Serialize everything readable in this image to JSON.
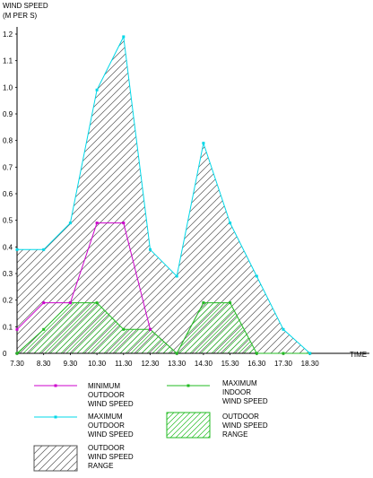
{
  "chart_data": {
    "type": "line",
    "ylabel_line1": "WIND SPEED",
    "ylabel_line2": "(M PER S)",
    "xlabel": "TIME",
    "ylim": [
      0,
      1.2
    ],
    "yticks": [
      "0",
      "0.1",
      "0.2",
      "0.3",
      "0.4",
      "0.5",
      "0.6",
      "0.7",
      "0.8",
      "0.9",
      "1.0",
      "1.1",
      "1.2"
    ],
    "categories": [
      "7.30",
      "8.30",
      "9.30",
      "10.30",
      "11.30",
      "12.30",
      "13.30",
      "14.30",
      "15.30",
      "16.30",
      "17.30",
      "18.30"
    ],
    "legend_placement": "bottom",
    "series": [
      {
        "key": "min_out",
        "color": "#cc00cc",
        "legend": [
          "MINIMUM",
          "OUTDOOR",
          "WIND SPEED"
        ],
        "x": [
          7.3,
          8.3,
          9.3,
          10.3,
          11.3,
          12.3
        ],
        "values": [
          0.09,
          0.19,
          0.19,
          0.49,
          0.49,
          0.09
        ]
      },
      {
        "key": "max_out",
        "color": "#00d8e8",
        "legend": [
          "MAXIMUM",
          "OUTDOOR",
          "WIND SPEED"
        ],
        "x": [
          7.3,
          8.3,
          9.3,
          10.3,
          11.3,
          12.3,
          13.3,
          14.3,
          15.3,
          16.3,
          17.3,
          18.3
        ],
        "values": [
          0.39,
          0.39,
          0.49,
          0.99,
          1.19,
          0.39,
          0.29,
          0.79,
          0.49,
          0.29,
          0.09,
          0.0
        ]
      },
      {
        "key": "max_in",
        "color": "#22bb22",
        "legend": [
          "MAXIMUM",
          "INDOOR",
          "WIND SPEED"
        ],
        "x": [
          7.3,
          8.3,
          9.3,
          10.3,
          11.3,
          12.3,
          13.3,
          14.3,
          15.3,
          16.3,
          17.3,
          18.3
        ],
        "values": [
          0.0,
          0.09,
          0.19,
          0.19,
          0.09,
          0.09,
          0.0,
          0.19,
          0.19,
          0.0,
          0.0,
          0.0
        ]
      },
      {
        "key": "min_in",
        "color": "#9a9a9a",
        "x": [
          12.3,
          13.3,
          14.3
        ],
        "values": [
          0.09,
          0.0,
          0.19
        ]
      }
    ],
    "ranges": [
      {
        "key": "indoor_range",
        "color": "#22bb22",
        "legend": [
          "OUTDOOR",
          "WIND SPEED",
          "RANGE"
        ]
      },
      {
        "key": "outdoor_range",
        "color": "#555555",
        "legend": [
          "OUTDOOR",
          "WIND SPEED",
          "RANGE"
        ]
      }
    ]
  }
}
